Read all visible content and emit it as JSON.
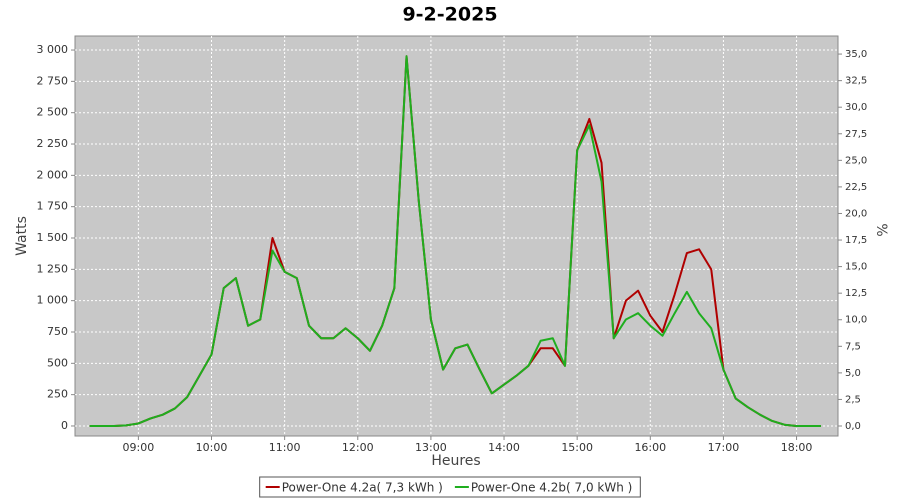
{
  "chart_data": {
    "type": "line",
    "title": "9-2-2025",
    "xlabel": "Heures",
    "ylabel": "Watts",
    "y2label": "%",
    "x": [
      500,
      510,
      520,
      530,
      540,
      550,
      560,
      570,
      580,
      590,
      600,
      610,
      620,
      630,
      640,
      650,
      660,
      670,
      680,
      690,
      700,
      710,
      720,
      730,
      740,
      750,
      760,
      770,
      780,
      790,
      800,
      810,
      820,
      830,
      840,
      850,
      860,
      870,
      880,
      890,
      900,
      910,
      920,
      930,
      940,
      950,
      960,
      970,
      980,
      990,
      1000,
      1010,
      1020,
      1030,
      1040,
      1050,
      1060,
      1070,
      1080,
      1090,
      1100
    ],
    "series": [
      {
        "name": "Power-One 4.2a( 7,3 kWh )",
        "color": "#b00000",
        "values": [
          0,
          0,
          0,
          5,
          20,
          60,
          90,
          140,
          230,
          400,
          570,
          1100,
          1180,
          800,
          850,
          1500,
          1230,
          1180,
          800,
          700,
          700,
          780,
          700,
          600,
          800,
          1100,
          2950,
          1800,
          850,
          450,
          620,
          650,
          450,
          260,
          330,
          400,
          480,
          620,
          620,
          480,
          2200,
          2450,
          2100,
          700,
          1000,
          1080,
          880,
          750,
          1050,
          1380,
          1410,
          1250,
          450,
          220,
          150,
          90,
          40,
          10,
          0,
          0,
          0
        ]
      },
      {
        "name": "Power-One 4.2b( 7,0 kWh )",
        "color": "#1fae1f",
        "values": [
          0,
          0,
          0,
          5,
          20,
          60,
          90,
          140,
          230,
          400,
          570,
          1100,
          1180,
          800,
          850,
          1400,
          1230,
          1180,
          800,
          700,
          700,
          780,
          700,
          600,
          800,
          1100,
          2950,
          1800,
          850,
          450,
          620,
          650,
          450,
          260,
          330,
          400,
          480,
          680,
          700,
          480,
          2200,
          2400,
          1950,
          700,
          850,
          900,
          800,
          720,
          900,
          1070,
          900,
          780,
          450,
          220,
          150,
          90,
          40,
          10,
          0,
          0,
          0
        ]
      }
    ],
    "xlim": [
      488,
      1114
    ],
    "xticks": [
      {
        "value": 540,
        "label": "09:00"
      },
      {
        "value": 600,
        "label": "10:00"
      },
      {
        "value": 660,
        "label": "11:00"
      },
      {
        "value": 720,
        "label": "12:00"
      },
      {
        "value": 780,
        "label": "13:00"
      },
      {
        "value": 840,
        "label": "14:00"
      },
      {
        "value": 900,
        "label": "15:00"
      },
      {
        "value": 960,
        "label": "16:00"
      },
      {
        "value": 1020,
        "label": "17:00"
      },
      {
        "value": 1080,
        "label": "18:00"
      }
    ],
    "ylim": [
      -80,
      3112
    ],
    "yticks": [
      0,
      250,
      500,
      750,
      {
        "value": 1000,
        "label": "1 000"
      },
      {
        "value": 1250,
        "label": "1 250"
      },
      {
        "value": 1500,
        "label": "1 500"
      },
      {
        "value": 1750,
        "label": "1 750"
      },
      {
        "value": 2000,
        "label": "2 000"
      },
      {
        "value": 2250,
        "label": "2 250"
      },
      {
        "value": 2500,
        "label": "2 500"
      },
      {
        "value": 2750,
        "label": "2 750"
      },
      {
        "value": 3000,
        "label": "3 000"
      }
    ],
    "y2lim": [
      -0.94,
      36.7
    ],
    "y2ticks": [
      {
        "value": 0,
        "label": "0,0"
      },
      {
        "value": 2.5,
        "label": "2,5"
      },
      {
        "value": 5,
        "label": "5,0"
      },
      {
        "value": 7.5,
        "label": "7,5"
      },
      {
        "value": 10,
        "label": "10,0"
      },
      {
        "value": 12.5,
        "label": "12,5"
      },
      {
        "value": 15,
        "label": "15,0"
      },
      {
        "value": 17.5,
        "label": "17,5"
      },
      {
        "value": 20,
        "label": "20,0"
      },
      {
        "value": 22.5,
        "label": "22,5"
      },
      {
        "value": 25,
        "label": "25,0"
      },
      {
        "value": 27.5,
        "label": "27,5"
      },
      {
        "value": 30,
        "label": "30,0"
      },
      {
        "value": 32.5,
        "label": "32,5"
      },
      {
        "value": 35,
        "label": "35,0"
      }
    ],
    "grid": true,
    "legend": "bottom"
  }
}
